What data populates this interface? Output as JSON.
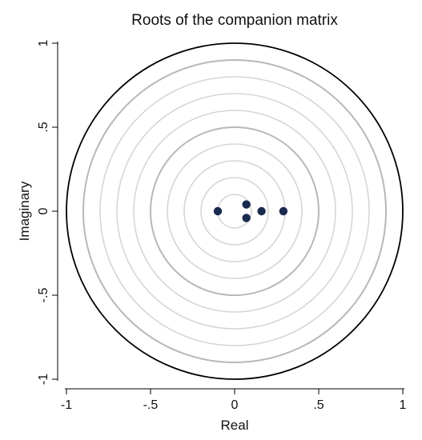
{
  "chart_data": {
    "type": "scatter",
    "title": "Roots of the companion matrix",
    "xlabel": "Real",
    "ylabel": "Imaginary",
    "xlim": [
      -1,
      1
    ],
    "ylim": [
      -1,
      1
    ],
    "x_ticks": [
      -1,
      -0.5,
      0,
      0.5,
      1
    ],
    "x_tick_labels": [
      "-1",
      "-.5",
      "0",
      ".5",
      "1"
    ],
    "y_ticks": [
      -1,
      -0.5,
      0,
      0.5,
      1
    ],
    "y_tick_labels": [
      "-1",
      "-.5",
      "0",
      ".5",
      "1"
    ],
    "unit_circle_radius": 1,
    "reference_circle_radii": [
      0.1,
      0.2,
      0.3,
      0.4,
      0.5,
      0.6,
      0.7,
      0.8,
      0.9
    ],
    "emphasized_circle_radii": [
      0.5,
      0.9
    ],
    "grid": false,
    "legend": "none",
    "colors": {
      "marker": "#1a2a4f",
      "unit_circle": "#000000",
      "reference_circle": "#d6d6d6",
      "emphasized_circle": "#b8b8b8",
      "axis": "#000000"
    },
    "points": [
      {
        "x": -0.1,
        "y": 0.0
      },
      {
        "x": 0.07,
        "y": 0.04
      },
      {
        "x": 0.07,
        "y": -0.04
      },
      {
        "x": 0.16,
        "y": 0.0
      },
      {
        "x": 0.29,
        "y": 0.0
      }
    ]
  }
}
